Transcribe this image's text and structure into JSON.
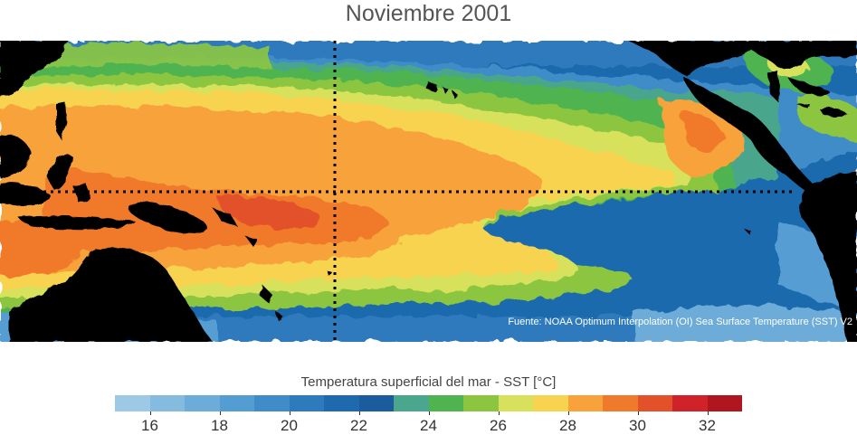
{
  "title": "Noviembre 2001",
  "source_note": "Fuente: NOAA Optimum Interpolation (OI) Sea Surface Temperature (SST) V2",
  "legend": {
    "title": "Temperatura superficial del mar - SST  [°C]",
    "tick_labels": [
      "16",
      "18",
      "20",
      "22",
      "24",
      "26",
      "28",
      "30",
      "32"
    ],
    "colors": [
      "#9ec9e6",
      "#86bbe0",
      "#6dacd9",
      "#549dd2",
      "#3f8cc8",
      "#2d7abd",
      "#1f6aae",
      "#1b5c9d",
      "#4aa68c",
      "#4fb34f",
      "#8cc640",
      "#d7e15c",
      "#f7d34f",
      "#f7a23a",
      "#f07a2c",
      "#e2512a",
      "#d02229",
      "#b0161f"
    ],
    "range": [
      15,
      33
    ],
    "step": 1
  },
  "map": {
    "region": "Pacífico tropical",
    "land_color": "#000000",
    "reference_lines": [
      "ecuador",
      "meridiano"
    ]
  }
}
